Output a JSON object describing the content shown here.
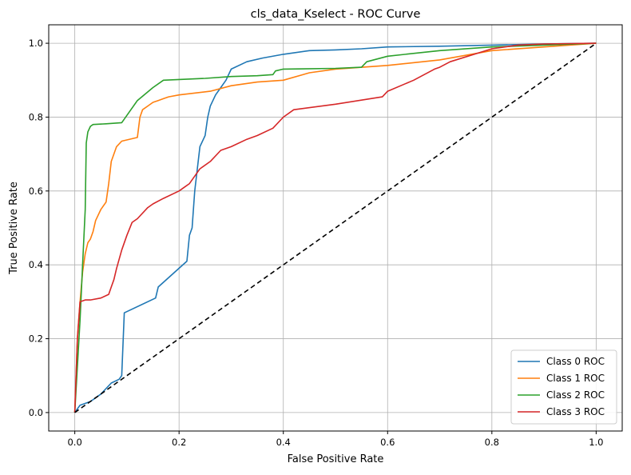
{
  "chart_data": {
    "type": "line",
    "title": "cls_data_Kselect - ROC Curve",
    "xlabel": "False Positive Rate",
    "ylabel": "True Positive Rate",
    "xlim": [
      -0.05,
      1.05
    ],
    "ylim": [
      -0.05,
      1.05
    ],
    "xticks": [
      "0.0",
      "0.2",
      "0.4",
      "0.6",
      "0.8",
      "1.0"
    ],
    "yticks": [
      "0.0",
      "0.2",
      "0.4",
      "0.6",
      "0.8",
      "1.0"
    ],
    "grid": true,
    "legend_position": "lower-right",
    "series": [
      {
        "name": "Class 0 ROC",
        "color": "#1f77b4",
        "x": [
          0,
          0.01,
          0.03,
          0.05,
          0.07,
          0.085,
          0.09,
          0.095,
          0.155,
          0.16,
          0.215,
          0.22,
          0.225,
          0.23,
          0.24,
          0.25,
          0.255,
          0.26,
          0.27,
          0.28,
          0.29,
          0.3,
          0.33,
          0.36,
          0.4,
          0.45,
          0.5,
          0.55,
          0.6,
          0.7,
          0.8,
          0.9,
          1.0
        ],
        "y": [
          0,
          0.02,
          0.03,
          0.05,
          0.08,
          0.09,
          0.1,
          0.27,
          0.31,
          0.34,
          0.41,
          0.48,
          0.5,
          0.6,
          0.72,
          0.75,
          0.8,
          0.83,
          0.86,
          0.88,
          0.9,
          0.93,
          0.95,
          0.96,
          0.97,
          0.98,
          0.982,
          0.985,
          0.99,
          0.992,
          0.995,
          0.998,
          1.0
        ]
      },
      {
        "name": "Class 1 ROC",
        "color": "#ff7f0e",
        "x": [
          0,
          0.005,
          0.01,
          0.015,
          0.02,
          0.025,
          0.03,
          0.035,
          0.04,
          0.05,
          0.06,
          0.065,
          0.07,
          0.075,
          0.08,
          0.09,
          0.12,
          0.125,
          0.13,
          0.14,
          0.15,
          0.16,
          0.17,
          0.18,
          0.2,
          0.26,
          0.3,
          0.35,
          0.4,
          0.45,
          0.5,
          0.6,
          0.7,
          0.8,
          0.9,
          1.0
        ],
        "y": [
          0,
          0.2,
          0.3,
          0.38,
          0.43,
          0.46,
          0.47,
          0.49,
          0.52,
          0.55,
          0.57,
          0.62,
          0.68,
          0.7,
          0.72,
          0.735,
          0.745,
          0.8,
          0.82,
          0.83,
          0.84,
          0.845,
          0.85,
          0.855,
          0.86,
          0.87,
          0.885,
          0.895,
          0.9,
          0.92,
          0.93,
          0.94,
          0.955,
          0.98,
          0.99,
          1.0
        ]
      },
      {
        "name": "Class 2 ROC",
        "color": "#2ca02c",
        "x": [
          0,
          0.01,
          0.015,
          0.02,
          0.022,
          0.025,
          0.03,
          0.035,
          0.06,
          0.09,
          0.12,
          0.15,
          0.17,
          0.25,
          0.3,
          0.35,
          0.38,
          0.385,
          0.4,
          0.5,
          0.55,
          0.56,
          0.6,
          0.7,
          0.8,
          0.9,
          1.0
        ],
        "y": [
          0,
          0.25,
          0.4,
          0.55,
          0.73,
          0.76,
          0.775,
          0.78,
          0.782,
          0.785,
          0.845,
          0.88,
          0.9,
          0.905,
          0.91,
          0.912,
          0.915,
          0.925,
          0.93,
          0.932,
          0.935,
          0.95,
          0.965,
          0.98,
          0.99,
          0.995,
          1.0
        ]
      },
      {
        "name": "Class 3 ROC",
        "color": "#d62728",
        "x": [
          0,
          0.005,
          0.01,
          0.02,
          0.03,
          0.05,
          0.065,
          0.07,
          0.075,
          0.08,
          0.09,
          0.1,
          0.11,
          0.12,
          0.14,
          0.15,
          0.17,
          0.2,
          0.21,
          0.22,
          0.24,
          0.26,
          0.28,
          0.3,
          0.33,
          0.35,
          0.38,
          0.4,
          0.42,
          0.5,
          0.59,
          0.6,
          0.65,
          0.69,
          0.7,
          0.72,
          0.8,
          0.85,
          0.9,
          1.0
        ],
        "y": [
          0,
          0.2,
          0.3,
          0.305,
          0.305,
          0.31,
          0.32,
          0.34,
          0.36,
          0.39,
          0.44,
          0.48,
          0.515,
          0.525,
          0.555,
          0.565,
          0.58,
          0.6,
          0.61,
          0.62,
          0.66,
          0.68,
          0.71,
          0.72,
          0.74,
          0.75,
          0.77,
          0.8,
          0.82,
          0.835,
          0.855,
          0.87,
          0.9,
          0.93,
          0.935,
          0.95,
          0.985,
          0.995,
          0.998,
          1.0
        ]
      },
      {
        "name": "",
        "color": "#000000",
        "dashed": true,
        "x": [
          0,
          1
        ],
        "y": [
          0,
          1
        ]
      }
    ]
  }
}
